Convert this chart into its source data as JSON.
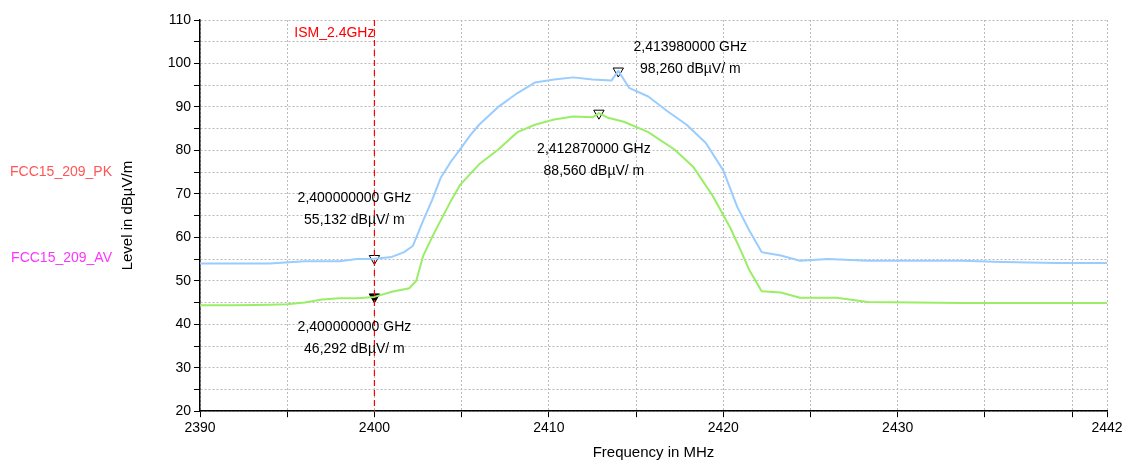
{
  "chart_data": {
    "type": "line",
    "xlabel": "Frequency in MHz",
    "ylabel": "Level in dBµV/m",
    "xlim": [
      2390,
      2442
    ],
    "xticks": [
      2390,
      {
        "value": 2395,
        "label": null
      },
      2400,
      {
        "value": 2405,
        "label": null
      },
      2410,
      {
        "value": 2415,
        "label": null
      },
      2420,
      {
        "value": 2425,
        "label": null
      },
      2430,
      {
        "value": 2435,
        "label": null
      },
      {
        "value": 2440,
        "label": null
      },
      2442
    ],
    "ylim": [
      20,
      110
    ],
    "yticks": [
      20,
      {
        "value": 25,
        "label": null
      },
      30,
      {
        "value": 35,
        "label": null
      },
      40,
      {
        "value": 45,
        "label": null
      },
      50,
      {
        "value": 55,
        "label": null
      },
      60,
      {
        "value": 65,
        "label": null
      },
      70,
      {
        "value": 75,
        "label": null
      },
      80,
      {
        "value": 85,
        "label": null
      },
      90,
      {
        "value": 95,
        "label": null
      },
      100,
      {
        "value": 105,
        "label": null
      },
      110
    ],
    "grid": true,
    "legend": false,
    "marker": "none",
    "line_style": "solid",
    "series": [
      {
        "color": "#99ccff",
        "x": [
          2390,
          2392,
          2394,
          2396,
          2398,
          2399,
          2400,
          2401,
          2401.7,
          2402.2,
          2402.8,
          2403.3,
          2403.8,
          2404.4,
          2404.9,
          2405.5,
          2406,
          2407.1,
          2408.2,
          2409.2,
          2410.3,
          2411.4,
          2412.5,
          2413.6,
          2413.98,
          2414.6,
          2415.7,
          2416.8,
          2417.9,
          2419,
          2420,
          2420.8,
          2421.5,
          2422.2,
          2423.3,
          2424.4,
          2426,
          2428.3,
          2431,
          2433.7,
          2436,
          2439.1,
          2442
        ],
        "values": [
          54,
          54,
          54,
          54.5,
          54.5,
          55,
          55.1,
          55.5,
          56.6,
          58,
          63.9,
          68.5,
          73.7,
          77.5,
          80.2,
          83.5,
          85.9,
          90,
          93.2,
          95.6,
          96.3,
          96.8,
          96.3,
          96.1,
          98.3,
          94.4,
          92.4,
          89,
          85.9,
          81.7,
          75.4,
          67,
          61.5,
          56.6,
          55.8,
          54.6,
          55,
          54.6,
          54.6,
          54.6,
          54.3,
          54.1,
          54.1
        ]
      },
      {
        "color": "#99ee66",
        "x": [
          2390,
          2392,
          2394,
          2395,
          2396,
          2397,
          2398,
          2399,
          2400,
          2401,
          2402,
          2402.4,
          2402.8,
          2403.3,
          2403.8,
          2404.4,
          2404.9,
          2406,
          2407.1,
          2408.2,
          2409.2,
          2410.3,
          2411.4,
          2412.5,
          2412.87,
          2413.4,
          2414.3,
          2415.7,
          2417.2,
          2418.3,
          2419.4,
          2420.4,
          2421,
          2421.5,
          2422.2,
          2423.3,
          2424.4,
          2426.5,
          2428.3,
          2431,
          2433.7,
          2437,
          2440,
          2442
        ],
        "values": [
          44.4,
          44.4,
          44.5,
          44.6,
          45,
          45.7,
          46,
          46,
          46.3,
          47.5,
          48.3,
          50,
          55.8,
          60,
          63.9,
          68.5,
          72,
          76.8,
          80.2,
          84.2,
          85.9,
          87.1,
          87.8,
          87.6,
          88.6,
          87.5,
          86.6,
          84.2,
          80.2,
          76.1,
          69.5,
          62.2,
          57,
          52.4,
          47.6,
          47.3,
          46.1,
          46.1,
          45.1,
          45,
          44.9,
          44.9,
          44.9,
          44.9
        ]
      },
      {
        "type": "scatter",
        "marker": "triangle",
        "color": "#000000",
        "colors": [
          "#ffffff",
          "#000000",
          "#ffffff",
          "#ffffff"
        ],
        "x": [
          2400,
          2400,
          2413.98,
          2412.87
        ],
        "values": [
          55.132,
          46.292,
          98.26,
          88.56
        ],
        "value_labels": [
          "2,400000000 GHz\n55,132 dBµV/ m",
          "2,400000000 GHz\n46,292 dBµV/ m",
          "2,413980000 GHz\n98,260 dBµV/ m",
          "2,412870000 GHz\n88,560 dBµV/ m"
        ]
      }
    ],
    "ref_lines": [
      {
        "axis": "x",
        "value": 2400,
        "label": "ISM_2.4GHz",
        "color": "#ff0000",
        "line_style": "dashed"
      }
    ],
    "annotations": [
      "FCC15_209_PK",
      "FCC15_209_AV"
    ]
  }
}
